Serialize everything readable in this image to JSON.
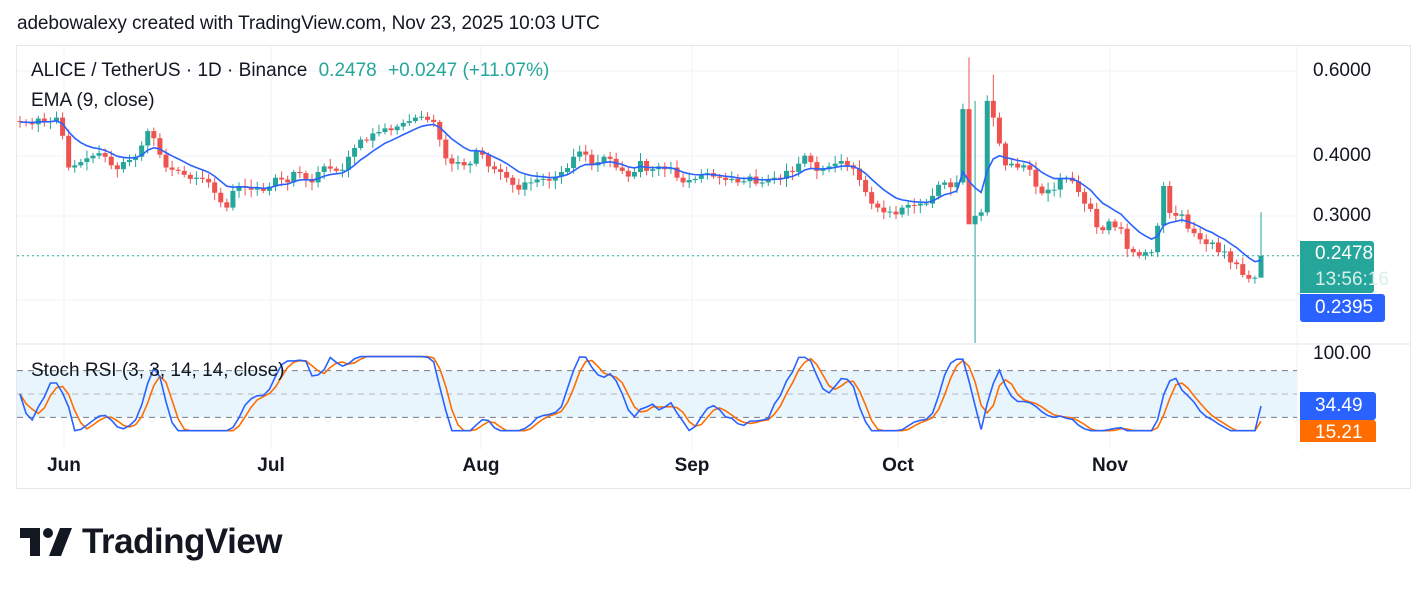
{
  "header": {
    "caption": "adebowalexy created with TradingView.com, Nov 23, 2025 10:03 UTC"
  },
  "legend": {
    "symbol": "ALICE / TetherUS · 1D · Binance",
    "last_price": "0.2478",
    "change": "+0.0247 (+11.07%)",
    "ema_label": "EMA (9, close)",
    "stoch_label": "Stoch RSI (3, 3, 14, 14, close)"
  },
  "price_axis": {
    "ticks": [
      "0.6000",
      "0.4000",
      "0.3000"
    ],
    "last_price_tag": "0.2478",
    "countdown": "13:56:16",
    "ema_tag": "0.2395"
  },
  "stoch_axis": {
    "tick": "100.00",
    "k_tag": "34.49",
    "d_tag": "15.21"
  },
  "time_axis": {
    "labels": [
      "Jun",
      "Jul",
      "Aug",
      "Sep",
      "Oct",
      "Nov"
    ]
  },
  "colors": {
    "up": "#26a69a",
    "down": "#ef5350",
    "ema": "#2962ff",
    "stoch_k": "#2962ff",
    "stoch_d": "#ff6d00",
    "band_fill": "#e3f2fd"
  },
  "brand": {
    "name": "TradingView"
  },
  "chart_data": [
    {
      "type": "candlestick",
      "title": "ALICE / TetherUS · 1D · Binance",
      "scale": "log",
      "y_ticks": [
        0.6,
        0.4,
        0.3
      ],
      "x_labels": [
        "Jun",
        "Jul",
        "Aug",
        "Sep",
        "Oct",
        "Nov"
      ],
      "x_range": [
        "2025-05-26",
        "2025-11-23"
      ],
      "last": 0.2478,
      "change": 0.0247,
      "change_pct": 11.07,
      "ema_9": 0.2395,
      "series_close_approx": [
        0.47,
        0.468,
        0.465,
        0.478,
        0.47,
        0.472,
        0.48,
        0.44,
        0.378,
        0.382,
        0.388,
        0.395,
        0.4,
        0.405,
        0.398,
        0.382,
        0.375,
        0.388,
        0.392,
        0.398,
        0.42,
        0.45,
        0.435,
        0.402,
        0.378,
        0.374,
        0.372,
        0.365,
        0.358,
        0.36,
        0.358,
        0.352,
        0.335,
        0.32,
        0.312,
        0.338,
        0.346,
        0.344,
        0.34,
        0.342,
        0.338,
        0.345,
        0.36,
        0.357,
        0.352,
        0.37,
        0.368,
        0.358,
        0.352,
        0.37,
        0.38,
        0.376,
        0.372,
        0.374,
        0.398,
        0.415,
        0.432,
        0.43,
        0.445,
        0.448,
        0.456,
        0.452,
        0.46,
        0.468,
        0.472,
        0.48,
        0.482,
        0.475,
        0.47,
        0.432,
        0.395,
        0.385,
        0.388,
        0.382,
        0.385,
        0.41,
        0.402,
        0.38,
        0.375,
        0.37,
        0.36,
        0.348,
        0.34,
        0.352,
        0.352,
        0.357,
        0.358,
        0.355,
        0.362,
        0.37,
        0.377,
        0.398,
        0.408,
        0.402,
        0.382,
        0.388,
        0.398,
        0.394,
        0.378,
        0.372,
        0.362,
        0.37,
        0.39,
        0.372,
        0.375,
        0.38,
        0.375,
        0.378,
        0.36,
        0.352,
        0.356,
        0.358,
        0.366,
        0.368,
        0.362,
        0.36,
        0.356,
        0.358,
        0.352,
        0.354,
        0.362,
        0.35,
        0.352,
        0.358,
        0.36,
        0.358,
        0.372,
        0.37,
        0.385,
        0.4,
        0.388,
        0.372,
        0.375,
        0.38,
        0.385,
        0.39,
        0.382,
        0.376,
        0.356,
        0.336,
        0.318,
        0.312,
        0.305,
        0.306,
        0.302,
        0.312,
        0.316,
        0.315,
        0.318,
        0.318,
        0.33,
        0.348,
        0.352,
        0.344,
        0.352,
        0.5,
        0.288,
        0.3,
        0.305,
        0.52,
        0.48,
        0.424,
        0.382,
        0.385,
        0.378,
        0.382,
        0.374,
        0.345,
        0.334,
        0.34,
        0.34,
        0.358,
        0.36,
        0.354,
        0.336,
        0.318,
        0.31,
        0.284,
        0.28,
        0.292,
        0.284,
        0.282,
        0.256,
        0.252,
        0.248,
        0.252,
        0.252,
        0.286,
        0.346,
        0.304,
        0.3,
        0.302,
        0.282,
        0.276,
        0.268,
        0.262,
        0.264,
        0.252,
        0.253,
        0.24,
        0.238,
        0.226,
        0.222,
        0.2231,
        0.2478
      ]
    },
    {
      "type": "line",
      "title": "Stoch RSI (3, 3, 14, 14, close)",
      "ylim": [
        0,
        100
      ],
      "bands": [
        20,
        50,
        80
      ],
      "series": [
        {
          "name": "K",
          "last": 34.49
        },
        {
          "name": "D",
          "last": 15.21
        }
      ]
    }
  ]
}
